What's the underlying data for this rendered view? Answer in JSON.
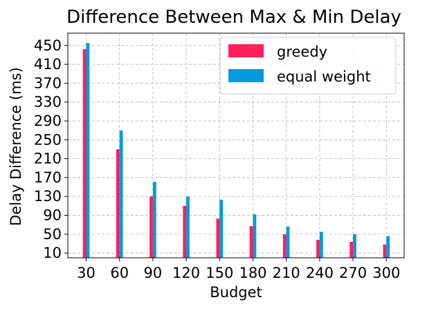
{
  "chart_data": {
    "type": "bar",
    "title": "Difference Between Max & Min Delay",
    "xlabel": "Budget",
    "ylabel": "Delay Difference (ms)",
    "categories": [
      "30",
      "60",
      "90",
      "120",
      "150",
      "180",
      "210",
      "240",
      "270",
      "300"
    ],
    "series": [
      {
        "name": "greedy",
        "color": "#ff1f5b",
        "values": [
          442,
          230,
          130,
          110,
          83,
          67,
          50,
          38,
          34,
          28
        ]
      },
      {
        "name": "equal weight",
        "color": "#009ade",
        "values": [
          455,
          270,
          161,
          130,
          123,
          92,
          66,
          55,
          50,
          46
        ]
      }
    ],
    "yticks": [
      10,
      50,
      90,
      130,
      170,
      210,
      250,
      290,
      330,
      370,
      410,
      450
    ],
    "ylim": [
      0,
      476
    ],
    "grid": true,
    "legend_position": "top-right"
  }
}
